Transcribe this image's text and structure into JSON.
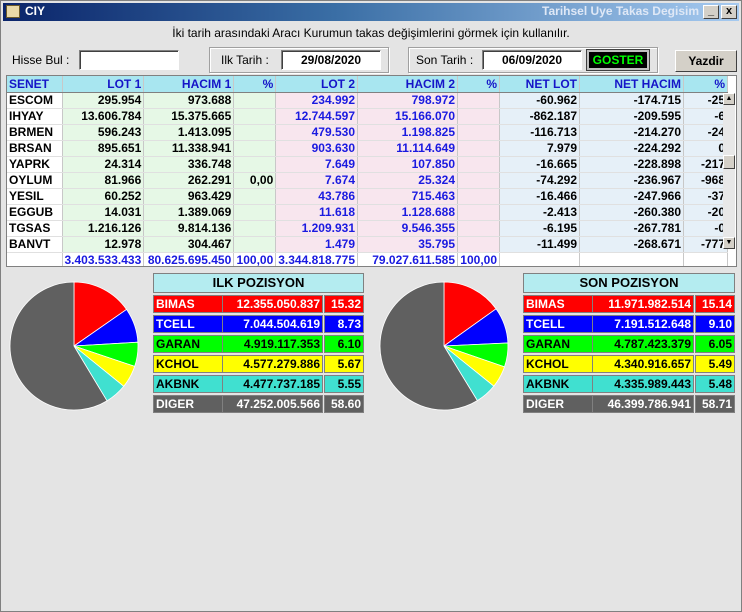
{
  "window": {
    "app_name": "CIY",
    "caption": "Tarihsel Uye Takas Degisim",
    "minimize_label": "_",
    "close_label": "x"
  },
  "description": "İki tarih arasındaki  Aracı Kurumun takas değişimlerini görmek için kullanılır.",
  "toolbar": {
    "hisse_label": "Hisse Bul :",
    "hisse_value": "",
    "ilk_label": "Ilk Tarih :",
    "ilk_value": "29/08/2020",
    "son_label": "Son Tarih :",
    "son_value": "06/09/2020",
    "goster_label": "GOSTER",
    "yazdir_label": "Yazdir"
  },
  "table": {
    "headers": [
      "SENET",
      "LOT 1",
      "HACIM 1",
      "%",
      "LOT 2",
      "HACIM 2",
      "%",
      "NET LOT",
      "NET HACIM",
      "%"
    ],
    "rows": [
      [
        "ESCOM",
        "295.954",
        "973.688",
        "",
        "234.992",
        "798.972",
        "",
        "-60.962",
        "-174.715",
        "-25"
      ],
      [
        "IHYAY",
        "13.606.784",
        "15.375.665",
        "",
        "12.744.597",
        "15.166.070",
        "",
        "-862.187",
        "-209.595",
        "-6"
      ],
      [
        "BRMEN",
        "596.243",
        "1.413.095",
        "",
        "479.530",
        "1.198.825",
        "",
        "-116.713",
        "-214.270",
        "-24"
      ],
      [
        "BRSAN",
        "895.651",
        "11.338.941",
        "",
        "903.630",
        "11.114.649",
        "",
        "7.979",
        "-224.292",
        "0"
      ],
      [
        "YAPRK",
        "24.314",
        "336.748",
        "",
        "7.649",
        "107.850",
        "",
        "-16.665",
        "-228.898",
        "-217"
      ],
      [
        "OYLUM",
        "81.966",
        "262.291",
        "0,00",
        "7.674",
        "25.324",
        "",
        "-74.292",
        "-236.967",
        "-968"
      ],
      [
        "YESIL",
        "60.252",
        "963.429",
        "",
        "43.786",
        "715.463",
        "",
        "-16.466",
        "-247.966",
        "-37"
      ],
      [
        "EGGUB",
        "14.031",
        "1.389.069",
        "",
        "11.618",
        "1.128.688",
        "",
        "-2.413",
        "-260.380",
        "-20"
      ],
      [
        "TGSAS",
        "1.216.126",
        "9.814.136",
        "",
        "1.209.931",
        "9.546.355",
        "",
        "-6.195",
        "-267.781",
        "-0"
      ],
      [
        "BANVT",
        "12.978",
        "304.467",
        "",
        "1.479",
        "35.795",
        "",
        "-11.499",
        "-268.671",
        "-777"
      ]
    ],
    "totals": [
      "",
      "3.403.533.433",
      "80.625.695.450",
      "100,00",
      "3.344.818.775",
      "79.027.611.585",
      "100,00",
      "",
      "",
      ""
    ]
  },
  "ilk_pozisyon": {
    "title": "ILK POZISYON",
    "rows": [
      {
        "name": "BIMAS",
        "value": "12.355.050.837",
        "pct": "15.32",
        "pct_num": 15.32,
        "color": "#ff0000",
        "text": "#ffffff"
      },
      {
        "name": "TCELL",
        "value": "7.044.504.619",
        "pct": "8.73",
        "pct_num": 8.73,
        "color": "#0000ff",
        "text": "#ffffff"
      },
      {
        "name": "GARAN",
        "value": "4.919.117.353",
        "pct": "6.10",
        "pct_num": 6.1,
        "color": "#00ff00",
        "text": "#000000"
      },
      {
        "name": "KCHOL",
        "value": "4.577.279.886",
        "pct": "5.67",
        "pct_num": 5.67,
        "color": "#ffff00",
        "text": "#000000"
      },
      {
        "name": "AKBNK",
        "value": "4.477.737.185",
        "pct": "5.55",
        "pct_num": 5.55,
        "color": "#40e0d0",
        "text": "#000000"
      },
      {
        "name": "DIGER",
        "value": "47.252.005.566",
        "pct": "58.60",
        "pct_num": 58.6,
        "color": "#606060",
        "text": "#ffffff"
      }
    ]
  },
  "son_pozisyon": {
    "title": "SON POZISYON",
    "rows": [
      {
        "name": "BIMAS",
        "value": "11.971.982.514",
        "pct": "15.14",
        "pct_num": 15.14,
        "color": "#ff0000",
        "text": "#ffffff"
      },
      {
        "name": "TCELL",
        "value": "7.191.512.648",
        "pct": "9.10",
        "pct_num": 9.1,
        "color": "#0000ff",
        "text": "#ffffff"
      },
      {
        "name": "GARAN",
        "value": "4.787.423.379",
        "pct": "6.05",
        "pct_num": 6.05,
        "color": "#00ff00",
        "text": "#000000"
      },
      {
        "name": "KCHOL",
        "value": "4.340.916.657",
        "pct": "5.49",
        "pct_num": 5.49,
        "color": "#ffff00",
        "text": "#000000"
      },
      {
        "name": "AKBNK",
        "value": "4.335.989.443",
        "pct": "5.48",
        "pct_num": 5.48,
        "color": "#40e0d0",
        "text": "#000000"
      },
      {
        "name": "DIGER",
        "value": "46.399.786.941",
        "pct": "58.71",
        "pct_num": 58.71,
        "color": "#606060",
        "text": "#ffffff"
      }
    ]
  }
}
